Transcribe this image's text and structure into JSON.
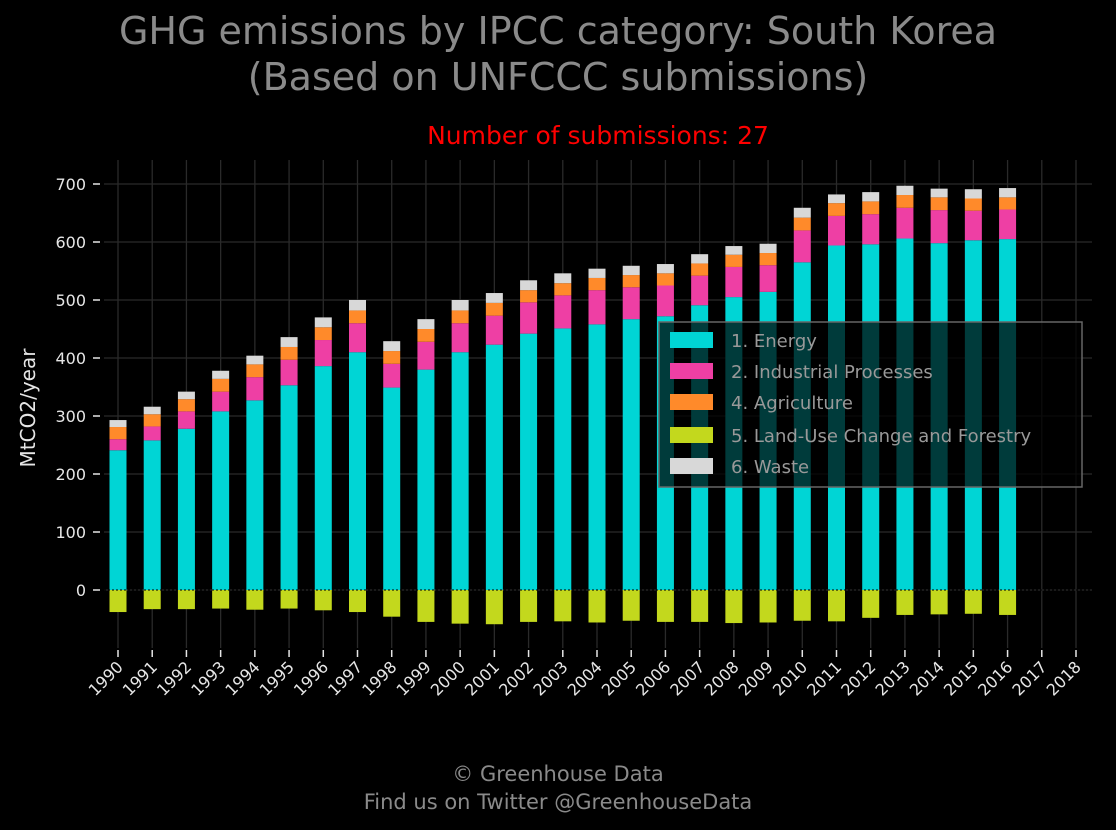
{
  "title": {
    "line1": "GHG emissions by IPCC category: South Korea",
    "line2": "(Based on UNFCCC submissions)"
  },
  "subtitle": "Number of submissions: 27",
  "footer": {
    "line1": "© Greenhouse Data",
    "line2": "Find us on Twitter @GreenhouseData"
  },
  "colors": {
    "background": "#000000",
    "grid": "#2a2a2a",
    "title": "#8a8a8a",
    "subtitle": "#ff0000"
  },
  "chart_data": {
    "type": "bar",
    "stacked": true,
    "ylabel": "MtCO2/year",
    "xlabel": "",
    "ylim": [
      -100,
      730
    ],
    "yticks": [
      0,
      100,
      200,
      300,
      400,
      500,
      600,
      700
    ],
    "grid": true,
    "legend_position": "center-right",
    "categories": [
      "1990",
      "1991",
      "1992",
      "1993",
      "1994",
      "1995",
      "1996",
      "1997",
      "1998",
      "1999",
      "2000",
      "2001",
      "2002",
      "2003",
      "2004",
      "2005",
      "2006",
      "2007",
      "2008",
      "2009",
      "2010",
      "2011",
      "2012",
      "2013",
      "2014",
      "2015",
      "2016",
      "2017",
      "2018"
    ],
    "series": [
      {
        "name": "1. Energy",
        "color": "#00d5d5",
        "values": [
          241,
          258,
          278,
          308,
          327,
          353,
          386,
          410,
          349,
          380,
          410,
          423,
          442,
          451,
          458,
          467,
          472,
          491,
          505,
          514,
          565,
          594,
          596,
          606,
          598,
          603,
          605,
          null,
          null
        ]
      },
      {
        "name": "2. Industrial Processes",
        "color": "#ee3fa4",
        "values": [
          19,
          24,
          30,
          34,
          40,
          44,
          45,
          50,
          41,
          48,
          50,
          50,
          54,
          57,
          59,
          55,
          53,
          51,
          52,
          46,
          55,
          51,
          52,
          53,
          57,
          51,
          51,
          null,
          null
        ]
      },
      {
        "name": "4. Agriculture",
        "color": "#ff8a2a",
        "values": [
          21,
          21,
          21,
          22,
          22,
          22,
          22,
          22,
          22,
          22,
          22,
          22,
          21,
          21,
          21,
          21,
          21,
          21,
          21,
          21,
          22,
          22,
          22,
          22,
          22,
          21,
          21,
          null,
          null
        ]
      },
      {
        "name": "5. Land-Use Change and Forestry",
        "color": "#c3d81d",
        "values": [
          -38,
          -33,
          -33,
          -32,
          -34,
          -32,
          -35,
          -38,
          -46,
          -55,
          -58,
          -59,
          -55,
          -54,
          -56,
          -53,
          -55,
          -55,
          -57,
          -56,
          -53,
          -54,
          -48,
          -43,
          -42,
          -41,
          -43,
          null,
          null
        ]
      },
      {
        "name": "6. Waste",
        "color": "#d8d8d8",
        "values": [
          12,
          13,
          13,
          14,
          15,
          17,
          17,
          18,
          17,
          17,
          18,
          17,
          17,
          17,
          16,
          16,
          16,
          16,
          15,
          16,
          17,
          15,
          16,
          16,
          15,
          16,
          16,
          null,
          null
        ]
      }
    ]
  }
}
